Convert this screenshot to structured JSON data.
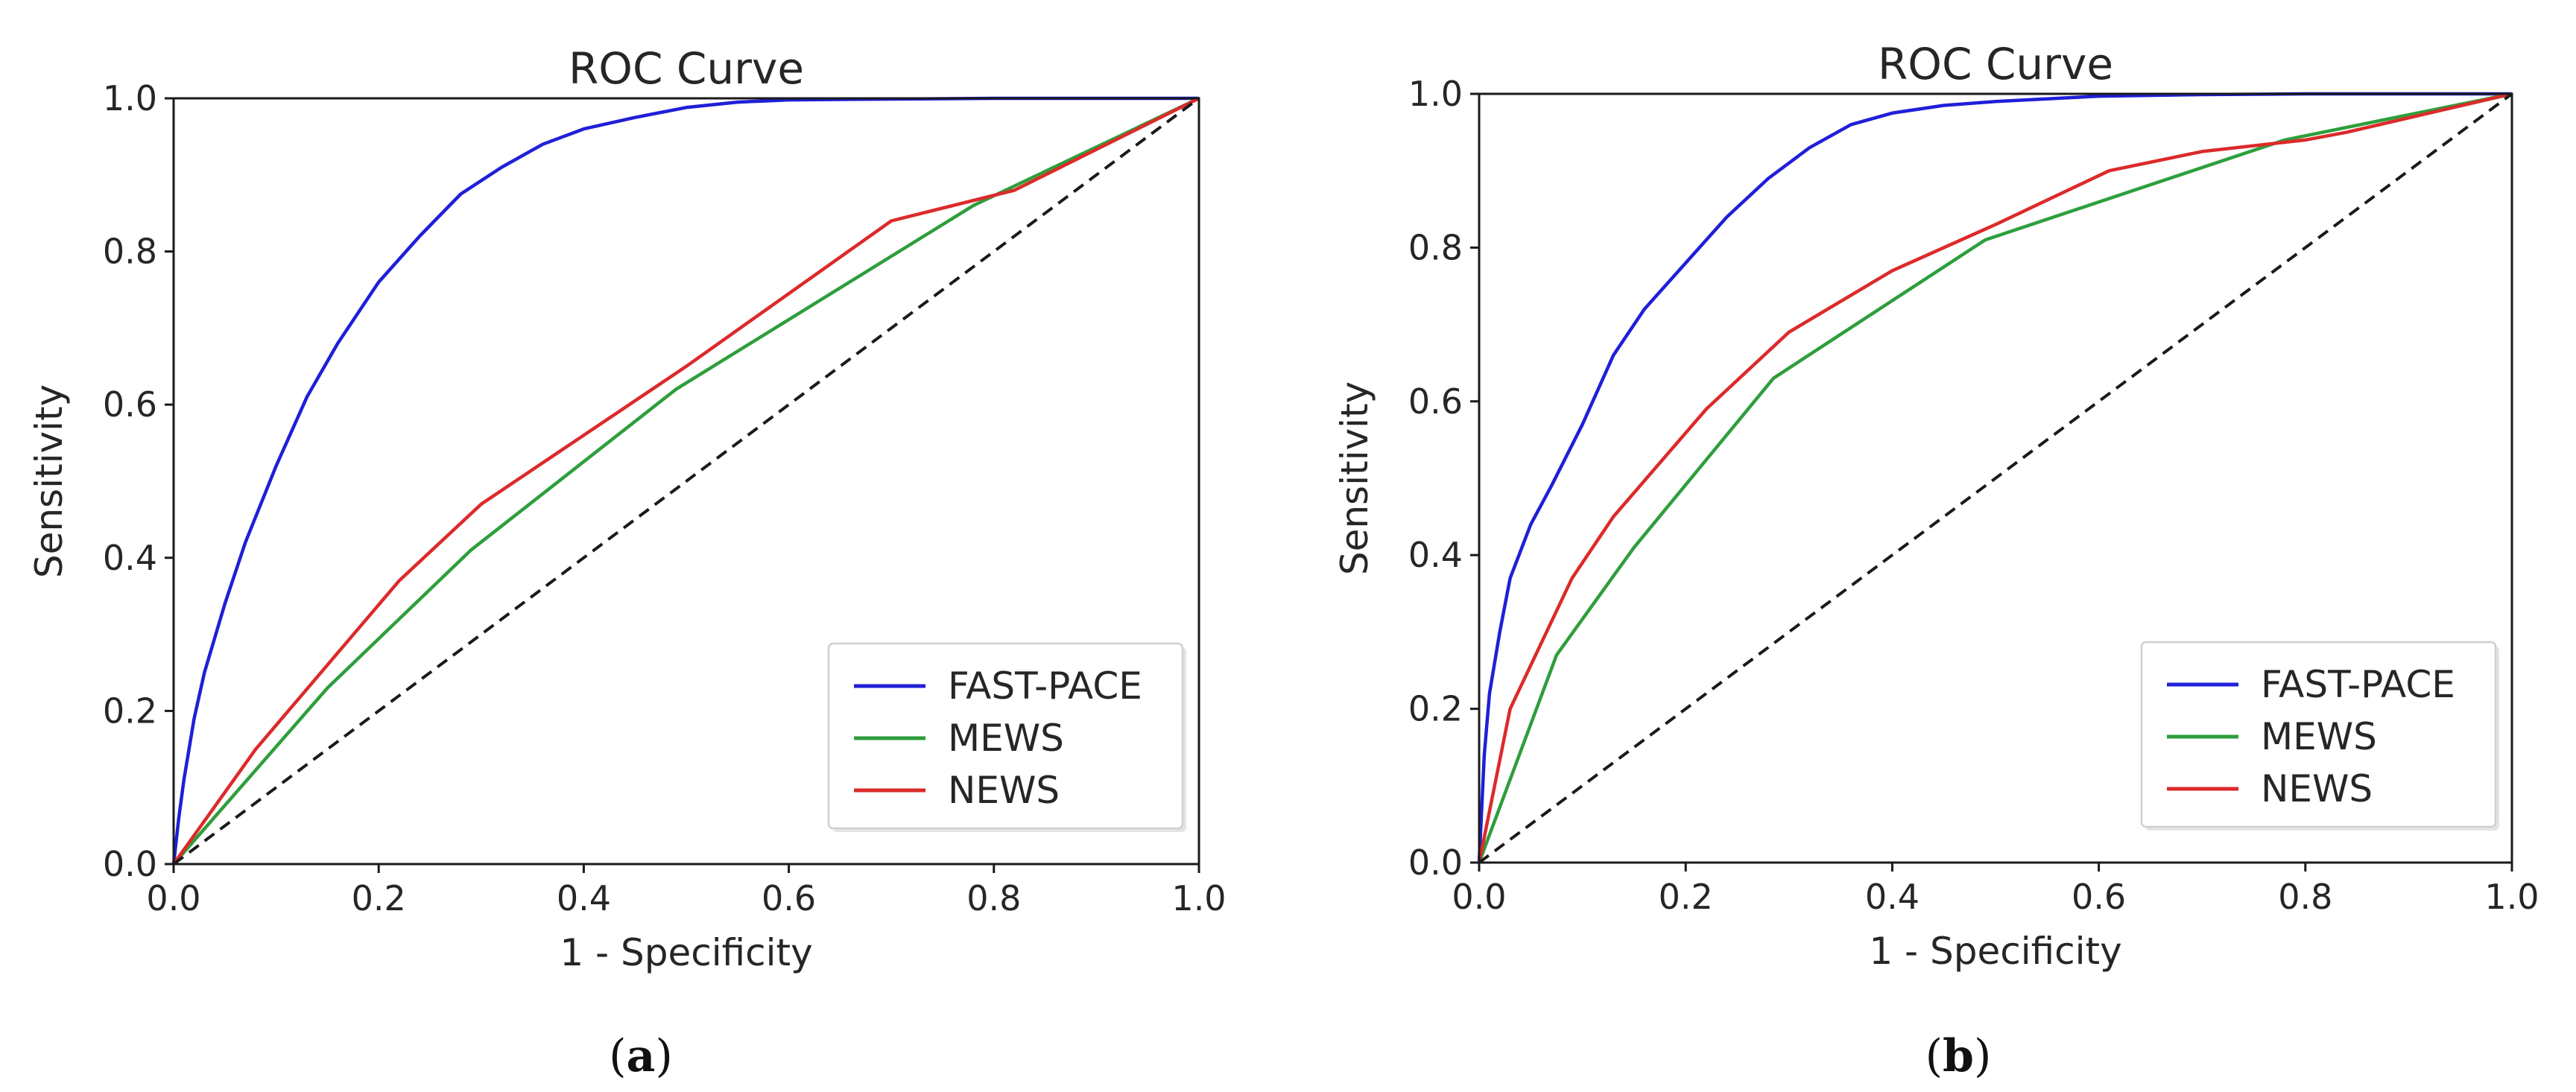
{
  "chart_data": [
    {
      "type": "line",
      "title": "ROC Curve",
      "xlabel": "1 - Specificity",
      "ylabel": "Sensitivity",
      "xlim": [
        0.0,
        1.0
      ],
      "ylim": [
        0.0,
        1.0
      ],
      "xticks": [
        "0.0",
        "0.2",
        "0.4",
        "0.6",
        "0.8",
        "1.0"
      ],
      "yticks": [
        "0.0",
        "0.2",
        "0.4",
        "0.6",
        "0.8",
        "1.0"
      ],
      "legend_position": "lower-right",
      "caption_open": "(",
      "caption_letter": "a",
      "caption_close": ")",
      "series": [
        {
          "name": "FAST-PACE",
          "color": "#1f1fd8",
          "style": "solid",
          "x": [
            0.0,
            0.005,
            0.01,
            0.02,
            0.03,
            0.05,
            0.07,
            0.1,
            0.13,
            0.16,
            0.2,
            0.24,
            0.28,
            0.32,
            0.36,
            0.4,
            0.45,
            0.5,
            0.55,
            0.6,
            0.7,
            0.8,
            0.9,
            1.0
          ],
          "y": [
            0.0,
            0.06,
            0.11,
            0.19,
            0.25,
            0.34,
            0.42,
            0.52,
            0.61,
            0.68,
            0.76,
            0.82,
            0.875,
            0.91,
            0.94,
            0.96,
            0.975,
            0.988,
            0.995,
            0.998,
            0.999,
            1.0,
            1.0,
            1.0
          ]
        },
        {
          "name": "MEWS",
          "color": "#2e9e3c",
          "style": "solid",
          "x": [
            0.0,
            0.15,
            0.29,
            0.49,
            0.78,
            1.0
          ],
          "y": [
            0.0,
            0.23,
            0.41,
            0.62,
            0.86,
            1.0
          ]
        },
        {
          "name": "NEWS",
          "color": "#dc2a2a",
          "style": "solid",
          "x": [
            0.0,
            0.08,
            0.22,
            0.3,
            0.5,
            0.7,
            0.82,
            1.0
          ],
          "y": [
            0.0,
            0.15,
            0.37,
            0.47,
            0.65,
            0.84,
            0.88,
            1.0
          ]
        },
        {
          "name": "chance",
          "color": "#1a1a1a",
          "style": "dashed",
          "legend": false,
          "x": [
            0.0,
            1.0
          ],
          "y": [
            0.0,
            1.0
          ]
        }
      ]
    },
    {
      "type": "line",
      "title": "ROC Curve",
      "xlabel": "1 - Specificity",
      "ylabel": "Sensitivity",
      "xlim": [
        0.0,
        1.0
      ],
      "ylim": [
        0.0,
        1.0
      ],
      "xticks": [
        "0.0",
        "0.2",
        "0.4",
        "0.6",
        "0.8",
        "1.0"
      ],
      "yticks": [
        "0.0",
        "0.2",
        "0.4",
        "0.6",
        "0.8",
        "1.0"
      ],
      "legend_position": "lower-right",
      "caption_open": "(",
      "caption_letter": "b",
      "caption_close": ")",
      "series": [
        {
          "name": "FAST-PACE",
          "color": "#1f1fd8",
          "style": "solid",
          "x": [
            0.0,
            0.005,
            0.01,
            0.02,
            0.03,
            0.05,
            0.07,
            0.1,
            0.13,
            0.16,
            0.2,
            0.24,
            0.28,
            0.32,
            0.36,
            0.4,
            0.45,
            0.5,
            0.6,
            0.7,
            0.8,
            1.0
          ],
          "y": [
            0.0,
            0.14,
            0.22,
            0.3,
            0.37,
            0.44,
            0.49,
            0.57,
            0.66,
            0.72,
            0.78,
            0.84,
            0.89,
            0.93,
            0.96,
            0.975,
            0.985,
            0.99,
            0.997,
            0.999,
            1.0,
            1.0
          ]
        },
        {
          "name": "MEWS",
          "color": "#2e9e3c",
          "style": "solid",
          "x": [
            0.0,
            0.075,
            0.15,
            0.285,
            0.49,
            0.78,
            1.0
          ],
          "y": [
            0.0,
            0.27,
            0.41,
            0.63,
            0.81,
            0.94,
            1.0
          ]
        },
        {
          "name": "NEWS",
          "color": "#dc2a2a",
          "style": "solid",
          "x": [
            0.0,
            0.03,
            0.09,
            0.13,
            0.22,
            0.3,
            0.4,
            0.5,
            0.61,
            0.7,
            0.8,
            0.84,
            1.0
          ],
          "y": [
            0.0,
            0.2,
            0.37,
            0.45,
            0.59,
            0.69,
            0.77,
            0.83,
            0.9,
            0.925,
            0.94,
            0.95,
            1.0
          ]
        },
        {
          "name": "chance",
          "color": "#1a1a1a",
          "style": "dashed",
          "legend": false,
          "x": [
            0.0,
            1.0
          ],
          "y": [
            0.0,
            1.0
          ]
        }
      ]
    }
  ]
}
